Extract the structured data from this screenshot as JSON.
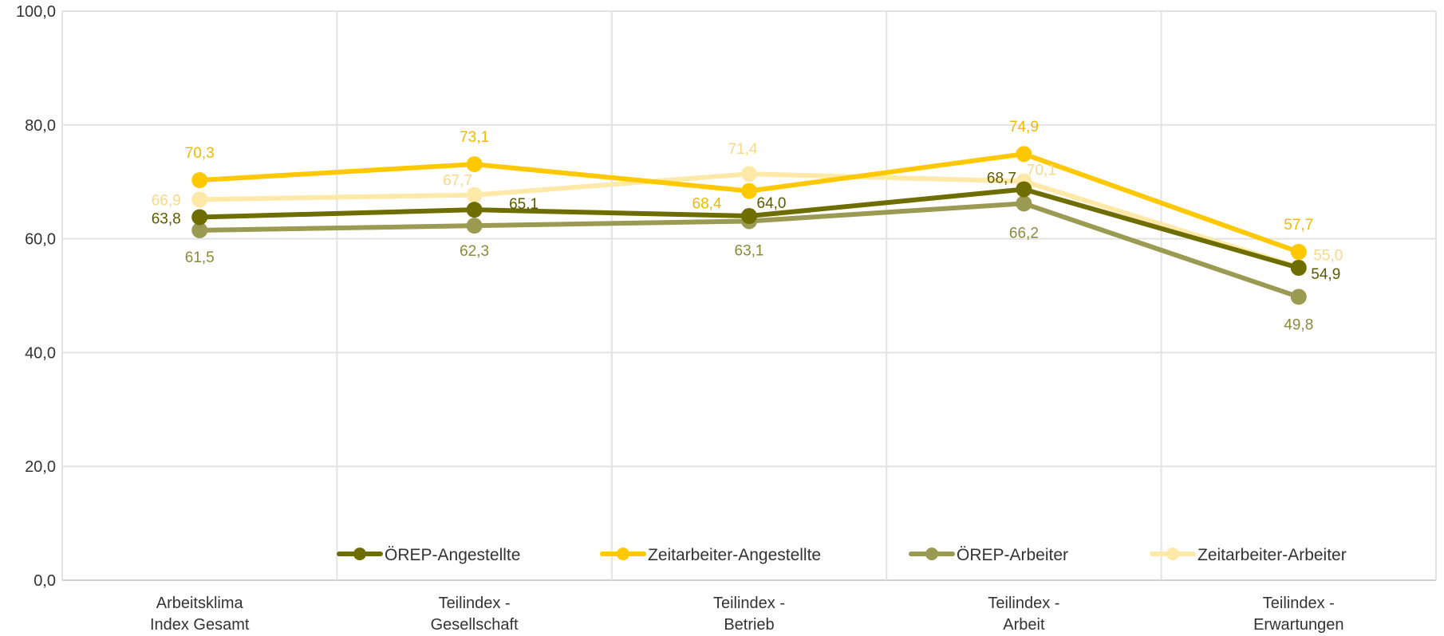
{
  "chart_data": {
    "type": "line",
    "title": "",
    "xlabel": "",
    "ylabel": "",
    "ylim": [
      0,
      100
    ],
    "yticks": [
      "0,0",
      "20,0",
      "40,0",
      "60,0",
      "80,0",
      "100,0"
    ],
    "grid": true,
    "legend_position": "bottom-inside",
    "categories": [
      [
        "Arbeitsklima",
        "Index Gesamt"
      ],
      [
        "Teilindex -",
        "Gesellschaft"
      ],
      [
        "Teilindex -",
        "Betrieb"
      ],
      [
        "Teilindex -",
        "Arbeit"
      ],
      [
        "Teilindex -",
        "Erwartungen"
      ]
    ],
    "series": [
      {
        "name": "ÖREP-Angestellte",
        "color": "#6E6E00",
        "label_color": "#5A5A00",
        "values": [
          63.8,
          65.1,
          64.0,
          68.7,
          54.9
        ],
        "labels": [
          "63,8",
          "65,1",
          "64,0",
          "68,7",
          "54,9"
        ]
      },
      {
        "name": "Zeitarbeiter-Angestellte",
        "color": "#FFC800",
        "label_color": "#F2B900",
        "values": [
          70.3,
          73.1,
          68.4,
          74.9,
          57.7
        ],
        "labels": [
          "70,3",
          "73,1",
          "68,4",
          "74,9",
          "57,7"
        ]
      },
      {
        "name": "ÖREP-Arbeiter",
        "color": "#9A9A52",
        "label_color": "#8A8A3E",
        "values": [
          61.5,
          62.3,
          63.1,
          66.2,
          49.8
        ],
        "labels": [
          "61,5",
          "62,3",
          "63,1",
          "66,2",
          "49,8"
        ]
      },
      {
        "name": "Zeitarbeiter-Arbeiter",
        "color": "#FFE9A8",
        "label_color": "#F7D98A",
        "values": [
          66.9,
          67.7,
          71.4,
          70.1,
          55.0
        ],
        "labels": [
          "66,9",
          "67,7",
          "71,4",
          "70,1",
          "55,0"
        ]
      }
    ]
  }
}
